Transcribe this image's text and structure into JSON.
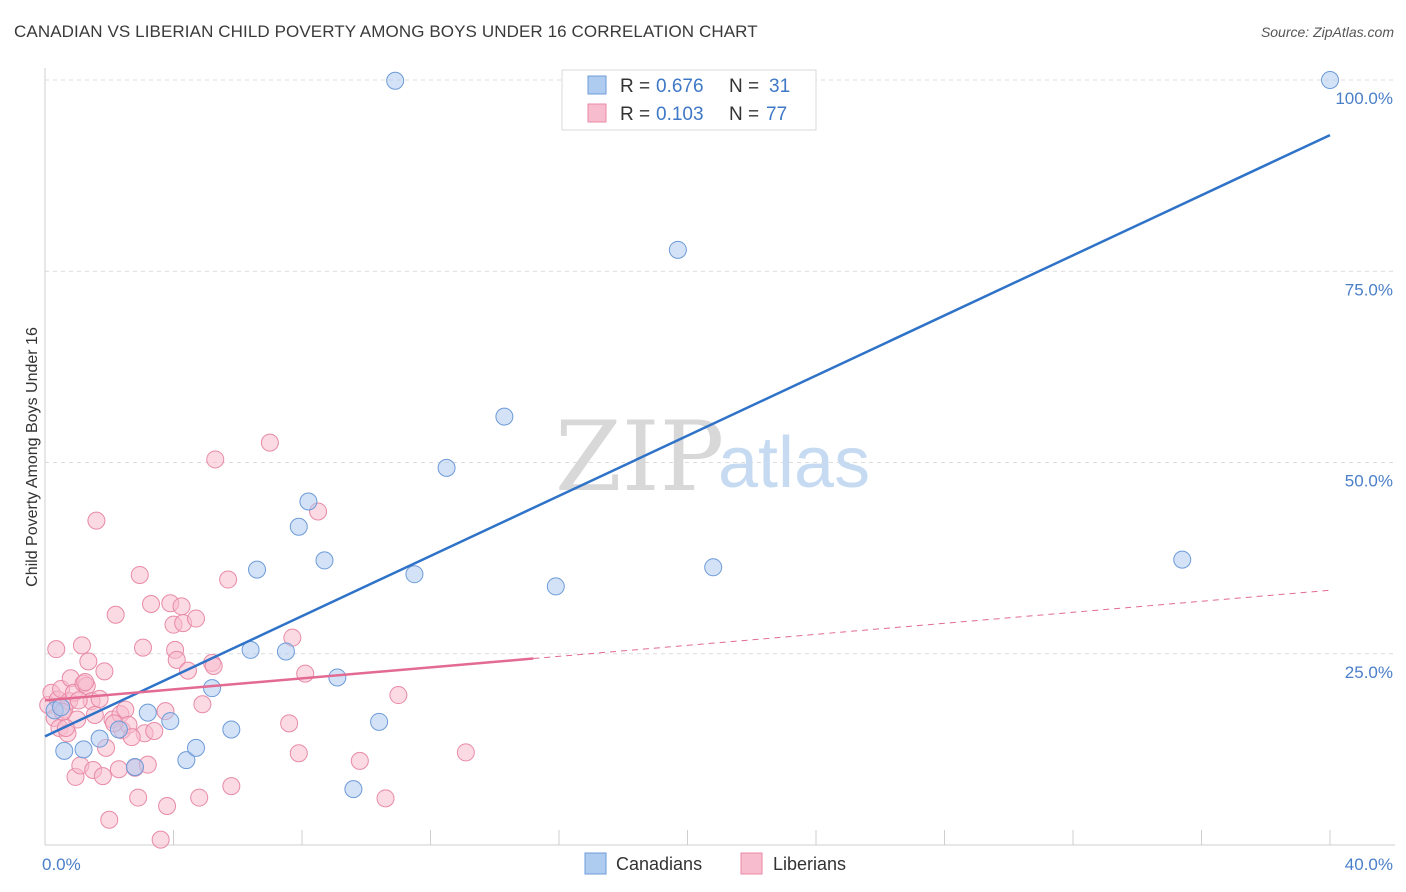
{
  "title": "CANADIAN VS LIBERIAN CHILD POVERTY AMONG BOYS UNDER 16 CORRELATION CHART",
  "source": "Source: ZipAtlas.com",
  "watermark": {
    "part1": "ZIP",
    "part2": "atlas"
  },
  "colors": {
    "canadians_fill": "#aecbf0",
    "canadians_stroke": "#6d9bd8",
    "canadians_line": "#2f73c8",
    "liberians_fill": "#f7bccd",
    "liberians_stroke": "#e88aa6",
    "liberians_line": "#e26a93",
    "tick_text": "#4a7fc8",
    "grid": "#dcdcdc"
  },
  "legend": {
    "row1": {
      "r_label": "R =",
      "r_value": "0.676",
      "n_label": "N =",
      "n_value": "31"
    },
    "row2": {
      "r_label": "R =",
      "r_value": "0.103",
      "n_label": "N =",
      "n_value": "77"
    }
  },
  "chart_data": {
    "type": "scatter",
    "title": "CANADIAN VS LIBERIAN CHILD POVERTY AMONG BOYS UNDER 16 CORRELATION CHART",
    "xlabel": "",
    "ylabel": "Child Poverty Among Boys Under 16",
    "xlim": [
      0,
      40
    ],
    "ylim": [
      0,
      100
    ],
    "x_tick_labels": [
      "0.0%",
      "40.0%"
    ],
    "y_tick_labels": [
      "25.0%",
      "50.0%",
      "75.0%",
      "100.0%"
    ],
    "y_ticks": [
      25,
      50,
      75,
      100
    ],
    "grid": true,
    "legend_position": "top-center",
    "series": [
      {
        "name": "Canadians",
        "r": 0.676,
        "n": 31,
        "trend": {
          "x": [
            0,
            40
          ],
          "y": [
            14.2,
            92.8
          ],
          "dashed_from": null
        },
        "points": [
          [
            0.3,
            17.6
          ],
          [
            0.5,
            18.0
          ],
          [
            0.6,
            12.3
          ],
          [
            1.2,
            12.5
          ],
          [
            1.7,
            13.9
          ],
          [
            2.3,
            15.1
          ],
          [
            2.8,
            10.2
          ],
          [
            3.2,
            17.3
          ],
          [
            3.9,
            16.2
          ],
          [
            4.4,
            11.1
          ],
          [
            4.7,
            12.7
          ],
          [
            5.2,
            20.5
          ],
          [
            5.8,
            15.1
          ],
          [
            6.4,
            25.5
          ],
          [
            6.6,
            36.0
          ],
          [
            7.5,
            25.3
          ],
          [
            7.9,
            41.6
          ],
          [
            8.2,
            44.9
          ],
          [
            8.7,
            37.2
          ],
          [
            9.1,
            21.9
          ],
          [
            9.6,
            7.3
          ],
          [
            10.4,
            16.1
          ],
          [
            10.9,
            99.9
          ],
          [
            11.5,
            35.4
          ],
          [
            12.5,
            49.3
          ],
          [
            14.3,
            56.0
          ],
          [
            15.9,
            33.8
          ],
          [
            19.7,
            77.8
          ],
          [
            20.8,
            36.3
          ],
          [
            35.4,
            37.3
          ],
          [
            40.0,
            100.0
          ]
        ]
      },
      {
        "name": "Liberians",
        "r": 0.103,
        "n": 77,
        "trend": {
          "x": [
            0,
            40
          ],
          "y": [
            18.9,
            33.3
          ],
          "dashed_from": 15.2
        },
        "points": [
          [
            0.1,
            18.3
          ],
          [
            0.2,
            19.9
          ],
          [
            0.3,
            16.6
          ],
          [
            0.35,
            25.6
          ],
          [
            0.4,
            19.0
          ],
          [
            0.45,
            15.3
          ],
          [
            0.5,
            20.4
          ],
          [
            0.6,
            17.7
          ],
          [
            0.7,
            14.6
          ],
          [
            0.75,
            18.8
          ],
          [
            0.8,
            21.8
          ],
          [
            0.9,
            19.9
          ],
          [
            0.95,
            8.9
          ],
          [
            1.0,
            16.4
          ],
          [
            1.1,
            10.4
          ],
          [
            1.15,
            26.1
          ],
          [
            1.2,
            21.1
          ],
          [
            1.3,
            20.8
          ],
          [
            1.35,
            24.0
          ],
          [
            1.45,
            18.8
          ],
          [
            1.5,
            9.8
          ],
          [
            1.6,
            42.4
          ],
          [
            1.7,
            19.1
          ],
          [
            1.8,
            9.0
          ],
          [
            1.85,
            22.7
          ],
          [
            1.9,
            12.7
          ],
          [
            2.0,
            3.3
          ],
          [
            2.1,
            16.4
          ],
          [
            2.2,
            30.1
          ],
          [
            2.3,
            9.9
          ],
          [
            2.35,
            17.1
          ],
          [
            2.4,
            15.0
          ],
          [
            2.5,
            17.7
          ],
          [
            2.6,
            15.7
          ],
          [
            2.8,
            10.1
          ],
          [
            2.9,
            6.2
          ],
          [
            2.95,
            35.3
          ],
          [
            3.05,
            25.8
          ],
          [
            3.1,
            14.6
          ],
          [
            3.2,
            10.5
          ],
          [
            3.3,
            31.5
          ],
          [
            3.4,
            14.9
          ],
          [
            3.6,
            0.7
          ],
          [
            3.8,
            5.1
          ],
          [
            3.9,
            31.6
          ],
          [
            4.0,
            28.8
          ],
          [
            4.05,
            25.5
          ],
          [
            4.1,
            24.2
          ],
          [
            4.25,
            31.2
          ],
          [
            4.3,
            29.0
          ],
          [
            4.45,
            22.8
          ],
          [
            4.7,
            29.6
          ],
          [
            4.8,
            6.2
          ],
          [
            4.9,
            18.4
          ],
          [
            5.2,
            23.8
          ],
          [
            5.25,
            23.4
          ],
          [
            5.3,
            50.4
          ],
          [
            5.7,
            34.7
          ],
          [
            5.8,
            7.7
          ],
          [
            7.0,
            52.6
          ],
          [
            7.6,
            15.9
          ],
          [
            7.7,
            27.1
          ],
          [
            7.9,
            12.0
          ],
          [
            8.1,
            22.4
          ],
          [
            8.5,
            43.6
          ],
          [
            9.8,
            11.0
          ],
          [
            10.6,
            6.1
          ],
          [
            11.0,
            19.6
          ],
          [
            13.1,
            12.1
          ],
          [
            1.25,
            21.3
          ],
          [
            0.55,
            17.4
          ],
          [
            2.15,
            15.9
          ],
          [
            0.65,
            15.3
          ],
          [
            1.05,
            18.9
          ],
          [
            1.55,
            17.0
          ],
          [
            2.7,
            14.1
          ],
          [
            3.75,
            17.5
          ]
        ]
      }
    ]
  },
  "bottom_legend": {
    "series1": "Canadians",
    "series2": "Liberians"
  }
}
